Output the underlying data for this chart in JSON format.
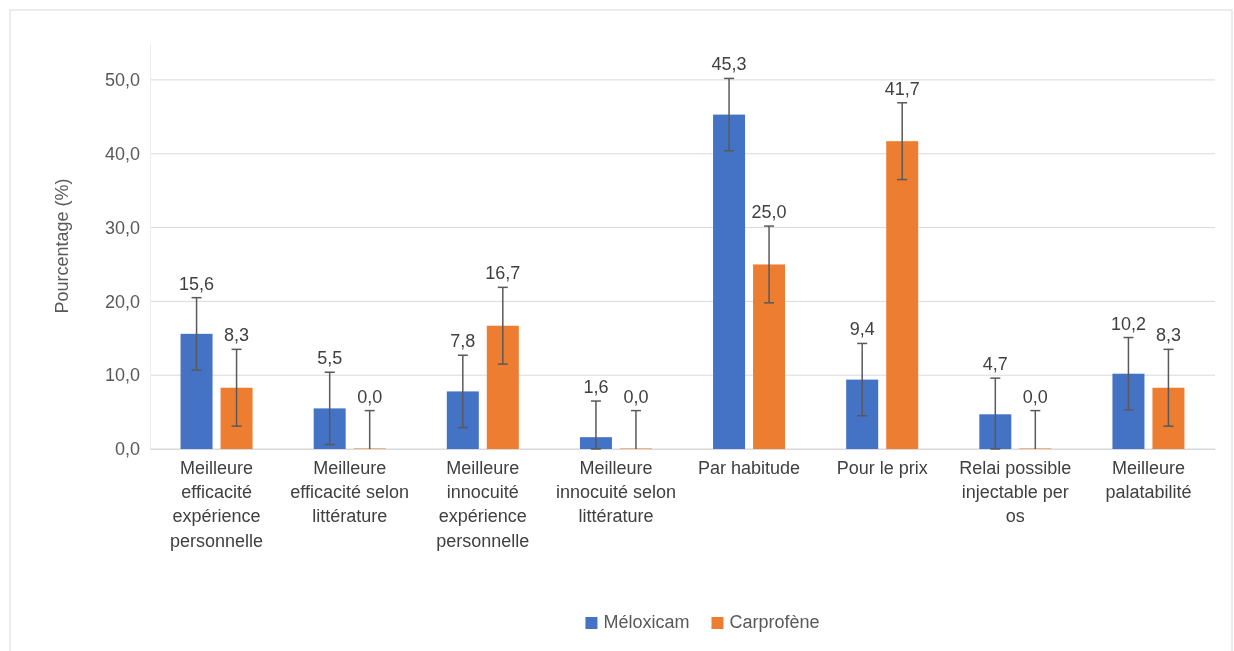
{
  "chart_data": {
    "type": "bar",
    "ylabel": "Pourcentage (%)",
    "categories": [
      "Meilleure efficacité expérience personnelle",
      "Meilleure efficacité selon littérature",
      "Meilleure innocuité expérience personnelle",
      "Meilleure innocuité selon littérature",
      "Par habitude",
      "Pour le prix",
      "Relai possible injectable per os",
      "Meilleure palatabilité"
    ],
    "series": [
      {
        "name": "Méloxicam",
        "color": "#4472c4",
        "values": [
          15.6,
          5.5,
          7.8,
          1.6,
          45.3,
          9.4,
          4.7,
          10.2
        ],
        "errors": [
          4.9,
          4.9,
          4.9,
          [
            0,
            6.5
          ],
          4.9,
          4.9,
          [
            0,
            9.6
          ],
          4.9
        ],
        "value_labels": [
          "15,6",
          "5,5",
          "7,8",
          "1,6",
          "45,3",
          "9,4",
          "4,7",
          "10,2"
        ]
      },
      {
        "name": "Carprofène",
        "color": "#ed7d31",
        "values": [
          8.3,
          0.0,
          16.7,
          0.0,
          25.0,
          41.7,
          0.0,
          8.3
        ],
        "errors": [
          5.2,
          [
            0,
            5.2
          ],
          5.2,
          [
            0,
            5.2
          ],
          5.2,
          5.2,
          [
            0,
            5.2
          ],
          5.2
        ],
        "value_labels": [
          "8,3",
          "0,0",
          "16,7",
          "0,0",
          "25,0",
          "41,7",
          "0,0",
          "8,3"
        ]
      }
    ],
    "ylim": [
      0,
      55
    ],
    "yticks": [
      {
        "value": 0,
        "label": "0,0"
      },
      {
        "value": 10,
        "label": "10,0"
      },
      {
        "value": 20,
        "label": "20,0"
      },
      {
        "value": 30,
        "label": "30,0"
      },
      {
        "value": 40,
        "label": "40,0"
      },
      {
        "value": 50,
        "label": "50,0"
      }
    ],
    "grid": "y",
    "legend": "bottom"
  }
}
